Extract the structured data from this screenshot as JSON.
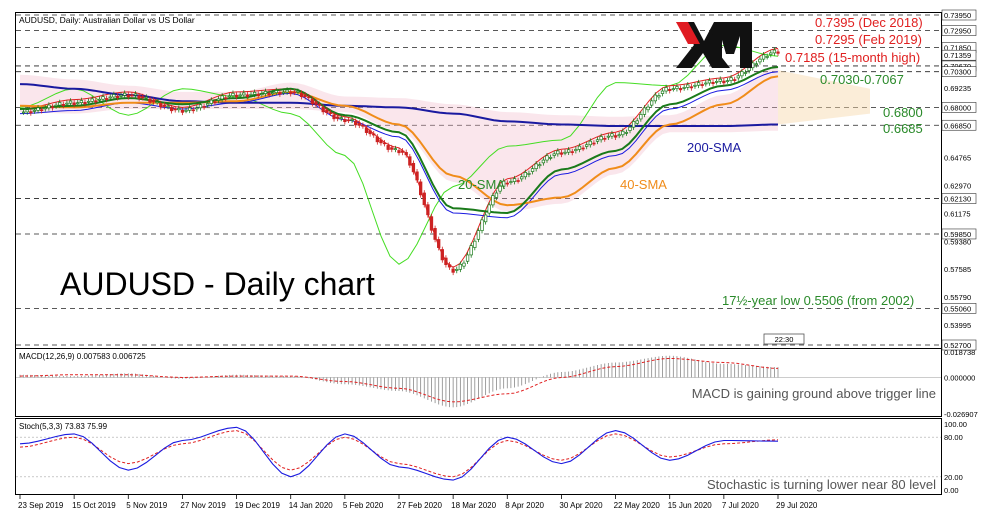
{
  "header": {
    "symbol_line": "AUDUSD, Daily:  Australian Dollar vs US Dollar"
  },
  "logo": {
    "text": "XM"
  },
  "main_title": "AUDUSD - Daily chart",
  "colors": {
    "price_up": "#1a7a1a",
    "price_down": "#cc2222",
    "sma20": "#1a7a1a",
    "sma40": "#f08c1a",
    "sma200": "#1a1aa0",
    "red_line": "#e02020",
    "lime_line": "#44dd22",
    "blue_line": "#1a1ae0",
    "cloud": "#f2b6c8",
    "cloud_alt": "#f7d6a8",
    "annotation_red": "#e02020",
    "annotation_green": "#2a8a2a",
    "annotation_orange": "#f08c1a",
    "annotation_blue": "#1a1aa0",
    "stoch_main": "#1a1ae0",
    "stoch_signal": "#e02020"
  },
  "price_axis": {
    "labels": [
      "0.73950",
      "0.72950",
      "0.71850",
      "0.71359",
      "0.70670",
      "0.70300",
      "0.69235",
      "0.68000",
      "0.66850",
      "0.64765",
      "0.62970",
      "0.62130",
      "0.61175",
      "0.59850",
      "0.59380",
      "0.57585",
      "0.55790",
      "0.55060",
      "0.53995",
      "0.52700"
    ]
  },
  "annotations": {
    "high_2018": "0.7395 (Dec 2018)",
    "high_2019": "0.7295 (Feb 2019)",
    "high_15m": "0.7185 (15-month high)",
    "zone_7030": "0.7030-0.7067",
    "level_6800": "0.6800",
    "level_6685": "0.6685",
    "sma200_label": "200-SMA",
    "sma20_label": "20-SMA",
    "sma40_label": "40-SMA",
    "low_label": "17½-year low 0.5506 (from 2002)",
    "time_tag": "22:30"
  },
  "macd_panel": {
    "header": "MACD(12,26,9) 0.007583 0.006725",
    "axis_labels": [
      "0.018738",
      "0.000000",
      "-0.026907"
    ],
    "note": "MACD is gaining ground above trigger line"
  },
  "stoch_panel": {
    "header": "Stoch(5,3,3) 73.83 75.99",
    "axis_labels": [
      "100.00",
      "80.00",
      "20.00",
      "0.00"
    ],
    "note": "Stochastic is turning lower near 80 level"
  },
  "x_axis": {
    "labels": [
      "23 Sep 2019",
      "15 Oct 2019",
      "5 Nov 2019",
      "27 Nov 2019",
      "19 Dec 2019",
      "14 Jan 2020",
      "5 Feb 2020",
      "27 Feb 2020",
      "18 Mar 2020",
      "8 Apr 2020",
      "30 Apr 2020",
      "22 May 2020",
      "15 Jun 2020",
      "7 Jul 2020",
      "29 Jul 2020"
    ]
  },
  "chart_data": {
    "type": "line",
    "title": "AUDUSD - Daily chart",
    "x": [
      "23 Sep 2019",
      "15 Oct 2019",
      "5 Nov 2019",
      "27 Nov 2019",
      "19 Dec 2019",
      "14 Jan 2020",
      "5 Feb 2020",
      "27 Feb 2020",
      "18 Mar 2020",
      "8 Apr 2020",
      "30 Apr 2020",
      "22 May 2020",
      "15 Jun 2020",
      "7 Jul 2020",
      "29 Jul 2020"
    ],
    "series": [
      {
        "name": "",
        "values": [
          0.677,
          0.683,
          0.688,
          0.678,
          0.688,
          0.69,
          0.672,
          0.652,
          0.575,
          0.632,
          0.651,
          0.662,
          0.692,
          0.697,
          0.716
        ]
      },
      {
        "name": "20-SMA",
        "values": [
          0.679,
          0.681,
          0.686,
          0.682,
          0.686,
          0.692,
          0.675,
          0.664,
          0.615,
          0.612,
          0.64,
          0.652,
          0.682,
          0.694,
          0.706
        ]
      },
      {
        "name": "40-SMA",
        "values": [
          0.681,
          0.68,
          0.683,
          0.683,
          0.684,
          0.69,
          0.681,
          0.669,
          0.636,
          0.617,
          0.622,
          0.641,
          0.669,
          0.682,
          0.7
        ]
      },
      {
        "name": "200-SMA",
        "values": [
          0.695,
          0.692,
          0.688,
          0.684,
          0.683,
          0.683,
          0.681,
          0.68,
          0.676,
          0.671,
          0.669,
          0.668,
          0.668,
          0.668,
          0.669
        ]
      }
    ],
    "stochastic": {
      "main": [
        70,
        85,
        30,
        75,
        95,
        20,
        85,
        35,
        15,
        80,
        40,
        90,
        45,
        75,
        74
      ],
      "signal": [
        65,
        80,
        40,
        70,
        90,
        30,
        80,
        40,
        20,
        75,
        45,
        85,
        50,
        70,
        76
      ]
    },
    "macd": {
      "histogram": [
        0.002,
        0.001,
        0.003,
        -0.001,
        0.002,
        0.001,
        -0.005,
        -0.01,
        -0.022,
        -0.008,
        0.004,
        0.011,
        0.016,
        0.01,
        0.0076
      ],
      "signal": [
        0.001,
        0.002,
        0.002,
        0.0,
        0.001,
        0.001,
        -0.003,
        -0.008,
        -0.018,
        -0.012,
        0.0,
        0.008,
        0.014,
        0.011,
        0.0067
      ]
    },
    "ylim": [
      0.527,
      0.7395
    ],
    "levels": [
      0.7395,
      0.7295,
      0.7185,
      0.7067,
      0.703,
      0.68,
      0.6685,
      0.6213,
      0.5985,
      0.5506,
      0.527
    ],
    "grid": false,
    "legend": "none"
  }
}
